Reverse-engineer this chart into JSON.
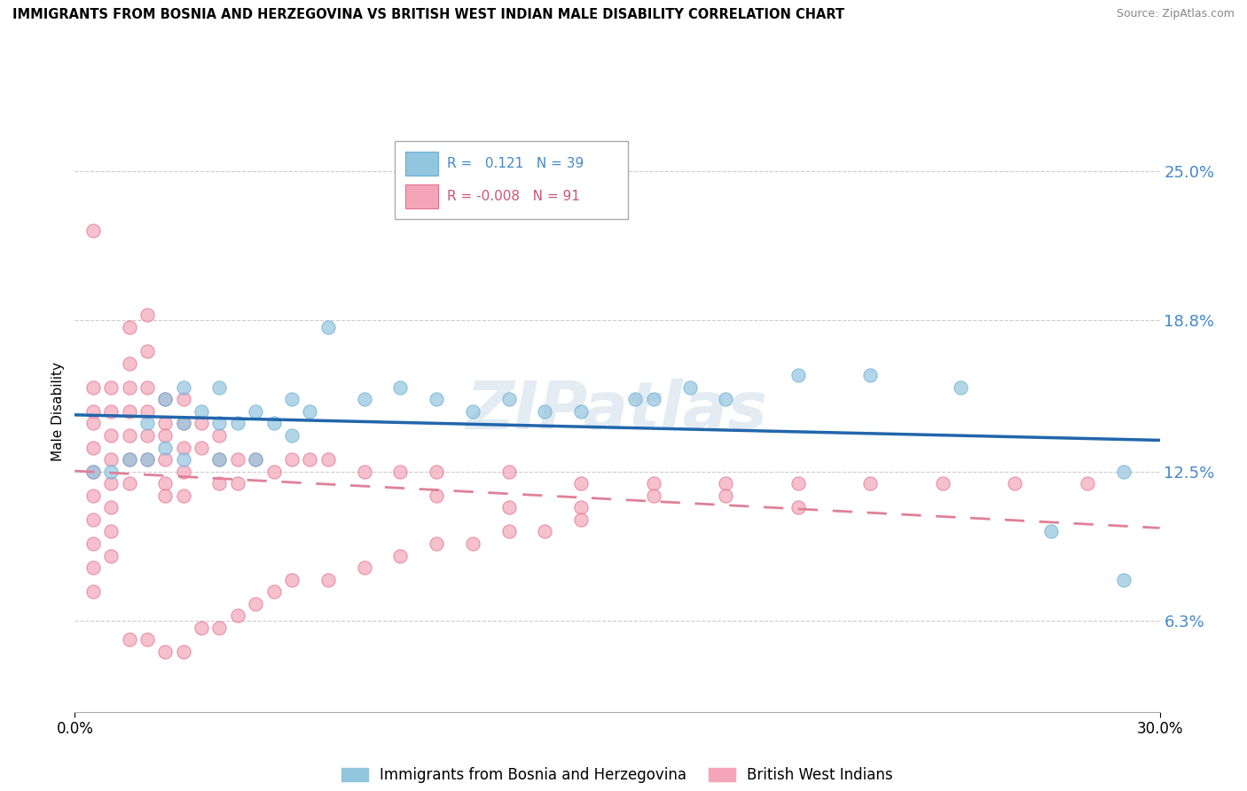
{
  "title": "IMMIGRANTS FROM BOSNIA AND HERZEGOVINA VS BRITISH WEST INDIAN MALE DISABILITY CORRELATION CHART",
  "source": "Source: ZipAtlas.com",
  "ylabel": "Male Disability",
  "xlim": [
    0.0,
    0.3
  ],
  "ylim": [
    0.025,
    0.275
  ],
  "ytick_values": [
    0.063,
    0.125,
    0.188,
    0.25
  ],
  "yticklabels": [
    "6.3%",
    "12.5%",
    "18.8%",
    "25.0%"
  ],
  "xtick_values": [
    0.0,
    0.3
  ],
  "xticklabels": [
    "0.0%",
    "30.0%"
  ],
  "blue_color": "#92c5de",
  "pink_color": "#f4a6b8",
  "blue_edge_color": "#6aaed6",
  "pink_edge_color": "#e07090",
  "blue_line_color": "#2166ac",
  "pink_line_color": "#e08098",
  "ytick_color": "#4488cc",
  "legend_R1": "0.121",
  "legend_N1": "39",
  "legend_R2": "-0.008",
  "legend_N2": "91",
  "blue_label": "Immigrants from Bosnia and Herzegovina",
  "pink_label": "British West Indians",
  "watermark": "ZIPatlas",
  "blue_scatter_x": [
    0.005,
    0.01,
    0.015,
    0.02,
    0.02,
    0.025,
    0.025,
    0.03,
    0.03,
    0.03,
    0.035,
    0.04,
    0.04,
    0.04,
    0.045,
    0.05,
    0.05,
    0.055,
    0.06,
    0.06,
    0.065,
    0.07,
    0.08,
    0.09,
    0.1,
    0.11,
    0.12,
    0.13,
    0.14,
    0.155,
    0.16,
    0.17,
    0.18,
    0.2,
    0.22,
    0.245,
    0.27,
    0.29,
    0.29
  ],
  "blue_scatter_y": [
    0.125,
    0.125,
    0.13,
    0.13,
    0.145,
    0.135,
    0.155,
    0.13,
    0.145,
    0.16,
    0.15,
    0.13,
    0.145,
    0.16,
    0.145,
    0.13,
    0.15,
    0.145,
    0.14,
    0.155,
    0.15,
    0.185,
    0.155,
    0.16,
    0.155,
    0.15,
    0.155,
    0.15,
    0.15,
    0.155,
    0.155,
    0.16,
    0.155,
    0.165,
    0.165,
    0.16,
    0.1,
    0.125,
    0.08
  ],
  "pink_scatter_x": [
    0.005,
    0.005,
    0.005,
    0.005,
    0.005,
    0.005,
    0.005,
    0.005,
    0.005,
    0.005,
    0.005,
    0.01,
    0.01,
    0.01,
    0.01,
    0.01,
    0.01,
    0.01,
    0.01,
    0.015,
    0.015,
    0.015,
    0.015,
    0.015,
    0.015,
    0.015,
    0.02,
    0.02,
    0.02,
    0.02,
    0.02,
    0.02,
    0.025,
    0.025,
    0.025,
    0.025,
    0.025,
    0.025,
    0.03,
    0.03,
    0.03,
    0.03,
    0.03,
    0.035,
    0.035,
    0.04,
    0.04,
    0.04,
    0.045,
    0.045,
    0.05,
    0.055,
    0.06,
    0.065,
    0.07,
    0.08,
    0.09,
    0.1,
    0.12,
    0.14,
    0.16,
    0.18,
    0.2,
    0.22,
    0.24,
    0.26,
    0.28,
    0.1,
    0.12,
    0.14,
    0.16,
    0.18,
    0.2,
    0.015,
    0.02,
    0.025,
    0.03,
    0.035,
    0.04,
    0.045,
    0.05,
    0.055,
    0.06,
    0.07,
    0.08,
    0.09,
    0.1,
    0.11,
    0.12,
    0.13,
    0.14
  ],
  "pink_scatter_y": [
    0.225,
    0.16,
    0.15,
    0.145,
    0.135,
    0.125,
    0.115,
    0.105,
    0.095,
    0.085,
    0.075,
    0.16,
    0.15,
    0.14,
    0.13,
    0.12,
    0.11,
    0.1,
    0.09,
    0.185,
    0.17,
    0.16,
    0.15,
    0.14,
    0.13,
    0.12,
    0.19,
    0.175,
    0.16,
    0.15,
    0.14,
    0.13,
    0.155,
    0.145,
    0.14,
    0.13,
    0.12,
    0.115,
    0.155,
    0.145,
    0.135,
    0.125,
    0.115,
    0.145,
    0.135,
    0.14,
    0.13,
    0.12,
    0.13,
    0.12,
    0.13,
    0.125,
    0.13,
    0.13,
    0.13,
    0.125,
    0.125,
    0.125,
    0.125,
    0.12,
    0.12,
    0.12,
    0.12,
    0.12,
    0.12,
    0.12,
    0.12,
    0.115,
    0.11,
    0.11,
    0.115,
    0.115,
    0.11,
    0.055,
    0.055,
    0.05,
    0.05,
    0.06,
    0.06,
    0.065,
    0.07,
    0.075,
    0.08,
    0.08,
    0.085,
    0.09,
    0.095,
    0.095,
    0.1,
    0.1,
    0.105
  ]
}
